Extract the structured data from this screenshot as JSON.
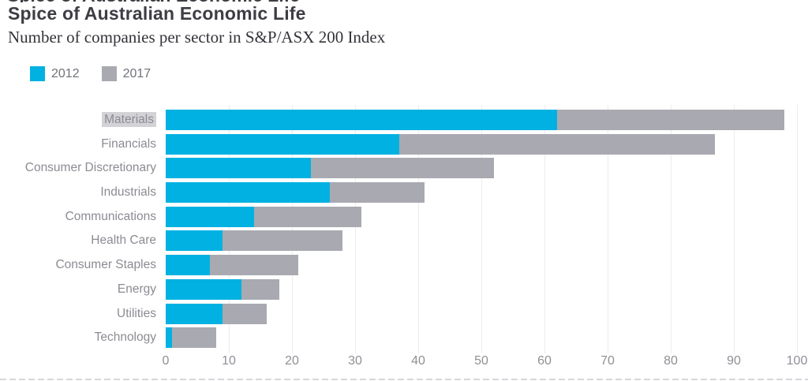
{
  "header": {
    "title": "Spice of Australian Economic Life",
    "subtitle": "Number of companies per sector in S&P/ASX 200 Index"
  },
  "legend": [
    {
      "label": "2012",
      "color": "#00b1e1"
    },
    {
      "label": "2017",
      "color": "#a9a9b2"
    }
  ],
  "chart_data": {
    "type": "bar",
    "orientation": "horizontal",
    "stacked": true,
    "title": "Spice of Australian Economic Life",
    "subtitle": "Number of companies per sector in S&P/ASX 200 Index",
    "categories": [
      "Materials",
      "Financials",
      "Consumer Discretionary",
      "Industrials",
      "Communications",
      "Health Care",
      "Consumer Staples",
      "Energy",
      "Utilities",
      "Technology"
    ],
    "series": [
      {
        "name": "2012",
        "color": "#00b1e1",
        "values": [
          62,
          37,
          23,
          26,
          14,
          9,
          7,
          12,
          9,
          1
        ]
      },
      {
        "name": "2017",
        "color": "#a9a9b2",
        "values": [
          36,
          50,
          29,
          15,
          17,
          19,
          14,
          6,
          7,
          7
        ]
      }
    ],
    "totals": [
      98,
      87,
      52,
      41,
      31,
      28,
      21,
      18,
      16,
      8
    ],
    "xlabel": "",
    "ylabel": "",
    "xlim": [
      0,
      100
    ],
    "xticks": [
      0,
      10,
      20,
      30,
      40,
      50,
      60,
      70,
      80,
      90,
      100
    ],
    "grid": true,
    "legend_position": "top-left",
    "highlighted_category": "Materials"
  },
  "colors": {
    "series_2012": "#00b1e1",
    "series_2017": "#a9a9b2",
    "title_text": "#3d3d44",
    "subtitle_text": "#33333a",
    "category_label": "#8b8b93",
    "tick_label": "#8f8f98",
    "legend_label": "#71717a",
    "gridline": "#ececf0",
    "highlight_background": "#d2d2d7"
  }
}
